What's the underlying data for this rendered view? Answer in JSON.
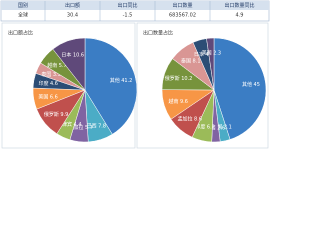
{
  "table": {
    "header": [
      "国别",
      "出口额",
      "出口同比",
      "出口数量",
      "出口数量同比"
    ],
    "rows": [
      [
        "全球",
        "30.4",
        "-1.5",
        "683567.02",
        "4.9"
      ]
    ]
  },
  "chart_data": [
    {
      "type": "pie",
      "title": "出口额占比",
      "categories": [
        "其他",
        "巴西",
        "孟加拉",
        "菲律宾",
        "俄罗斯",
        "美国",
        "印度",
        "泰国",
        "越南",
        "日本"
      ],
      "values": [
        41.2,
        7.8,
        5.7,
        4.4,
        9.9,
        6.6,
        4.6,
        3.5,
        5.7,
        10.6
      ],
      "colors": [
        "#3b7dc4",
        "#4bacc6",
        "#8064a2",
        "#9bbb59",
        "#c0504d",
        "#f79646",
        "#2c4d75",
        "#d99694",
        "#77933c",
        "#5f497a"
      ]
    },
    {
      "type": "pie",
      "title": "出口数量占比",
      "categories": [
        "其他",
        "德国",
        "巴西",
        "印度",
        "孟加拉",
        "越南",
        "俄罗斯",
        "泰国",
        "日本",
        "美国"
      ],
      "values": [
        45.0,
        3.1,
        2.6,
        6.2,
        8.6,
        9.6,
        10.2,
        8.1,
        4.3,
        2.3
      ],
      "colors": [
        "#3b7dc4",
        "#4bacc6",
        "#8064a2",
        "#9bbb59",
        "#c0504d",
        "#f79646",
        "#77933c",
        "#d99694",
        "#2c4d75",
        "#5f497a"
      ]
    }
  ]
}
